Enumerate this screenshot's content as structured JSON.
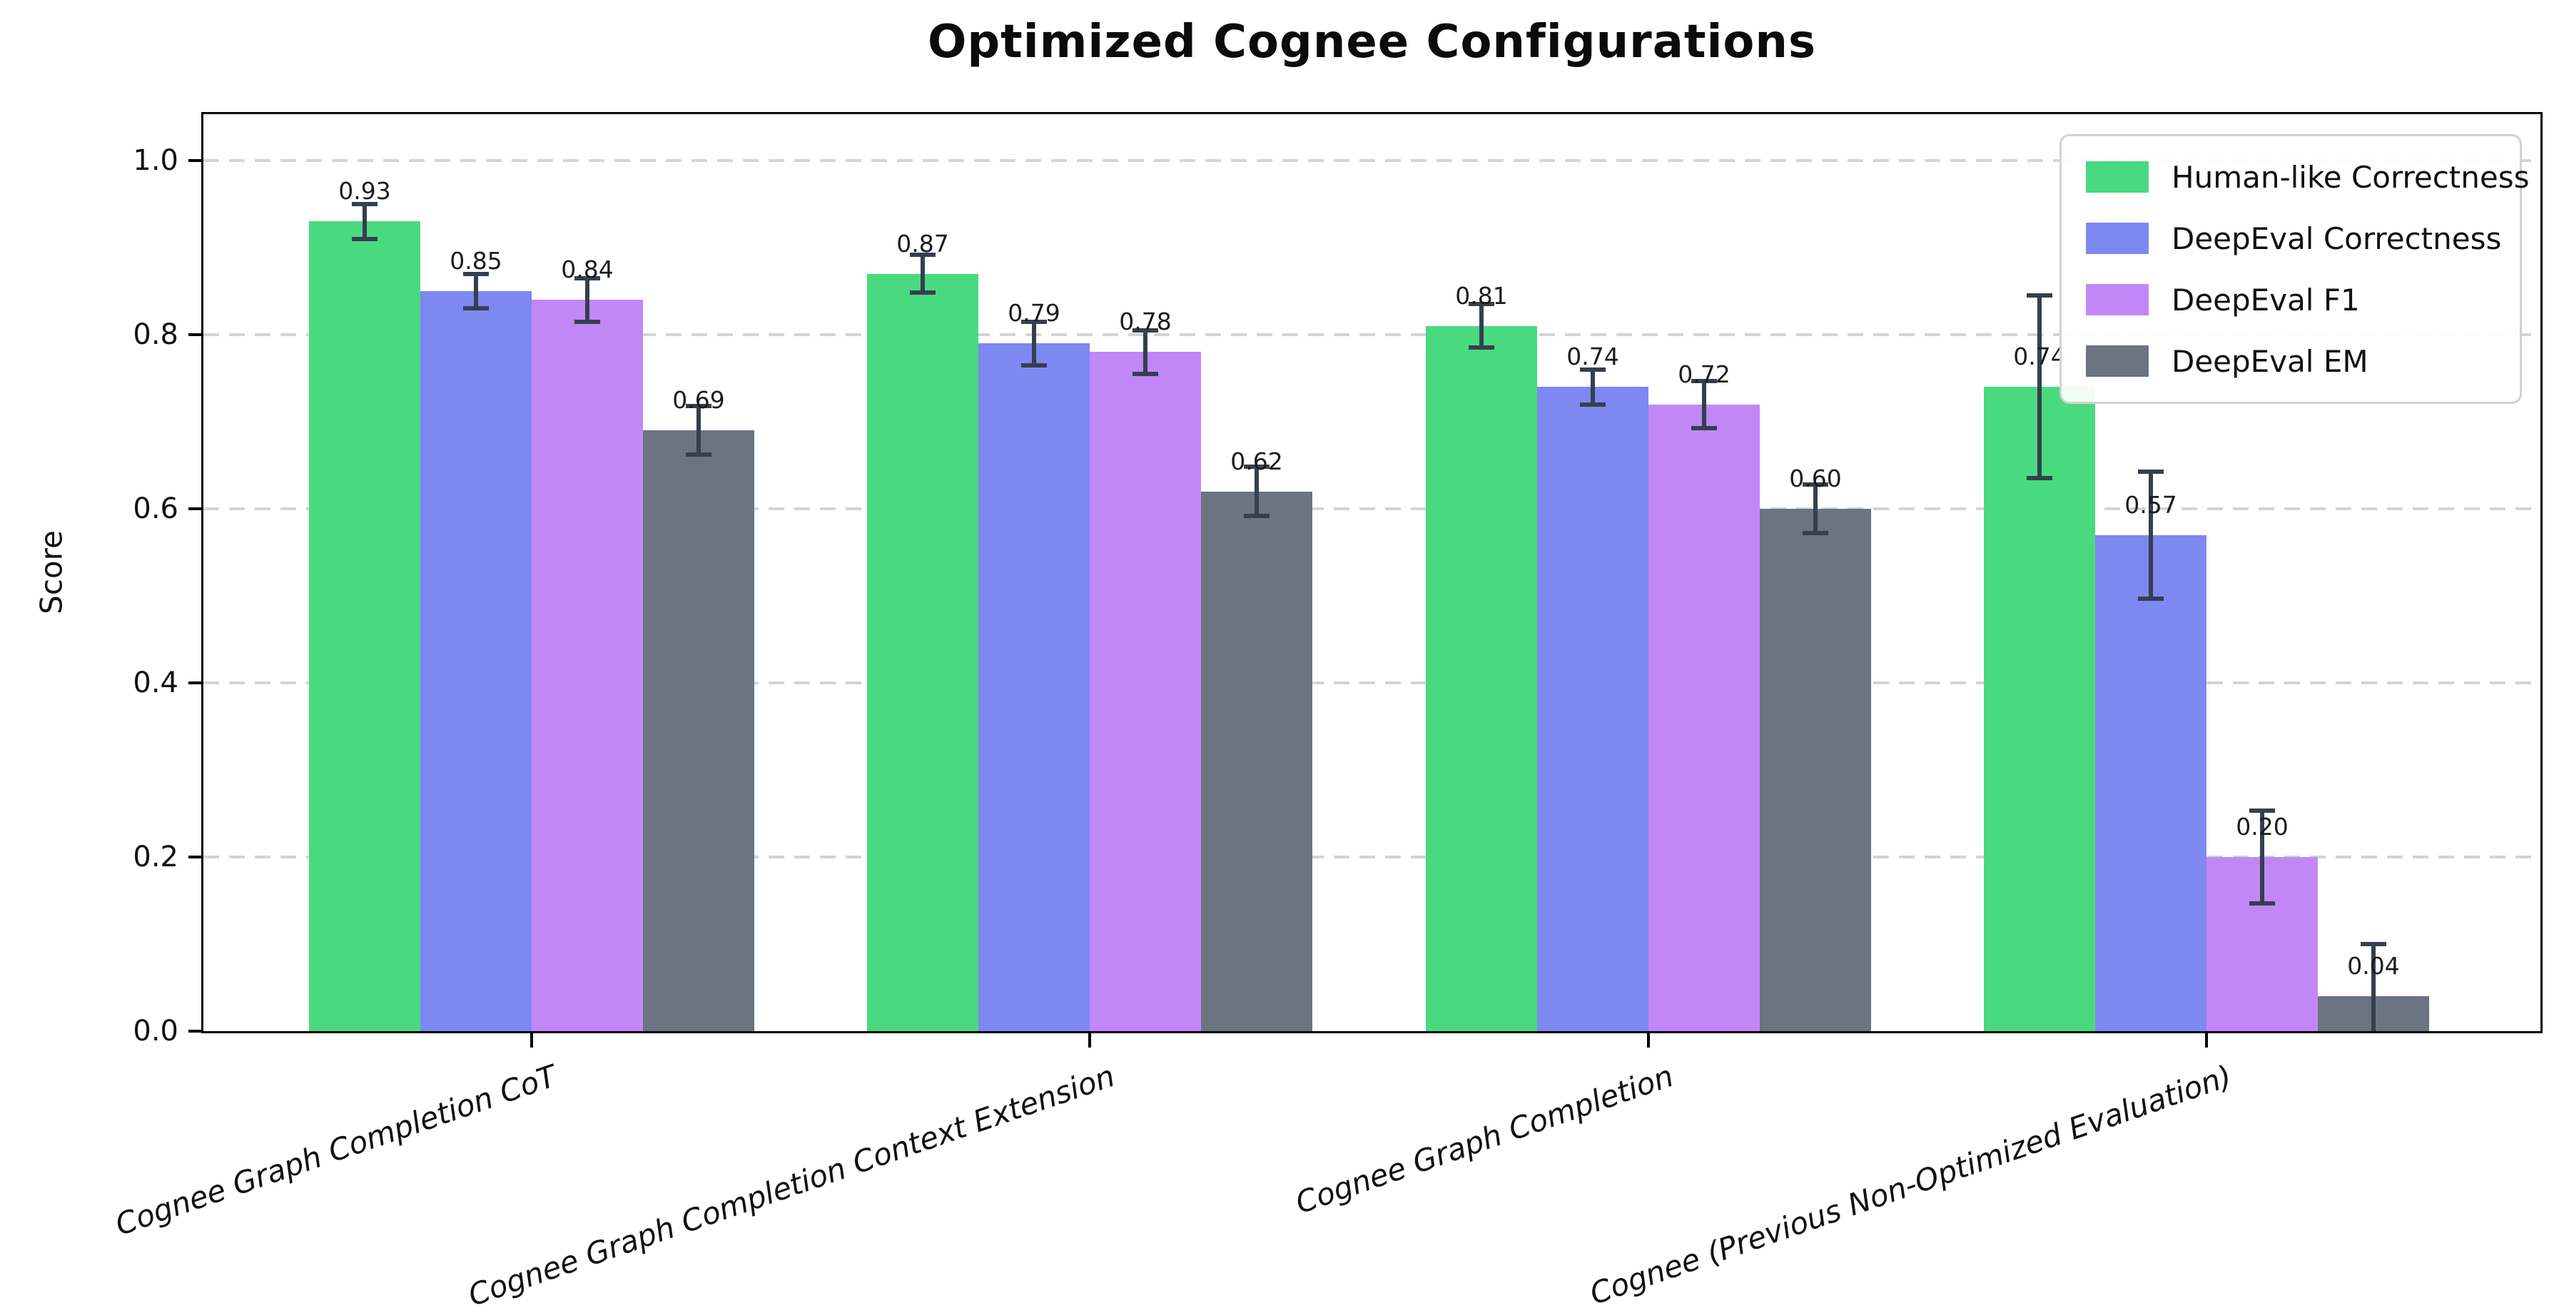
{
  "chart_data": {
    "type": "bar",
    "title": "Optimized Cognee Configurations",
    "xlabel": "",
    "ylabel": "Score",
    "ylim": [
      0,
      1.05
    ],
    "yticks": [
      0.0,
      0.2,
      0.4,
      0.6,
      0.8,
      1.0
    ],
    "ytick_labels": [
      "0.0",
      "0.2",
      "0.4",
      "0.6",
      "0.8",
      "1.0"
    ],
    "grid": "horizontal dashed at y ticks, drawn behind bars",
    "legend_position": "upper right",
    "categories": [
      "Cognee Graph Completion CoT",
      "Cognee Graph Completion Context Extension",
      "Cognee Graph Completion",
      "Cognee (Previous Non-Optimized Evaluation)"
    ],
    "series": [
      {
        "name": "Human-like Correctness",
        "color": "#49da80",
        "values": [
          0.93,
          0.87,
          0.81,
          0.74
        ],
        "errors": [
          0.02,
          0.022,
          0.025,
          0.105
        ],
        "labels": [
          "0.93",
          "0.87",
          "0.81",
          "0.74"
        ]
      },
      {
        "name": "DeepEval Correctness",
        "color": "#7e88f1",
        "values": [
          0.85,
          0.79,
          0.74,
          0.57
        ],
        "errors": [
          0.02,
          0.025,
          0.02,
          0.073
        ],
        "labels": [
          "0.85",
          "0.79",
          "0.74",
          "0.57"
        ]
      },
      {
        "name": "DeepEval F1",
        "color": "#c287f6",
        "values": [
          0.84,
          0.78,
          0.72,
          0.2
        ],
        "errors": [
          0.025,
          0.025,
          0.027,
          0.053
        ],
        "labels": [
          "0.84",
          "0.78",
          "0.72",
          "0.20"
        ]
      },
      {
        "name": "DeepEval EM",
        "color": "#6b7480",
        "values": [
          0.69,
          0.62,
          0.6,
          0.04
        ],
        "errors": [
          0.028,
          0.028,
          0.028,
          0.06
        ],
        "labels": [
          "0.69",
          "0.62",
          "0.60",
          "0.04"
        ]
      }
    ],
    "style": {
      "error_bar_color": "#353f4e",
      "grid_color": "#d4d4d4",
      "spine_color": "#000000",
      "background": "#ffffff"
    }
  }
}
